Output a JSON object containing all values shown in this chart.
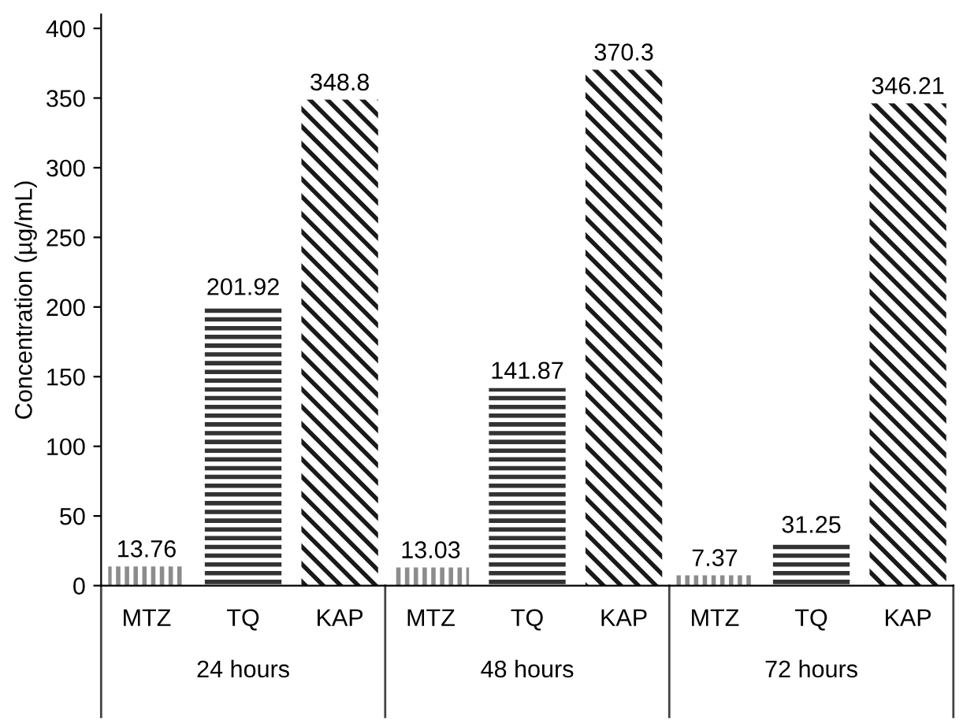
{
  "chart_data": {
    "type": "bar",
    "ylabel": "Concentration (µg/mL)",
    "categories": [
      "24 hours",
      "48 hours",
      "72 hours"
    ],
    "series": [
      {
        "name": "MTZ",
        "color": "#8c8c8c",
        "values": [
          13.76,
          13.03,
          7.37
        ]
      },
      {
        "name": "TQ",
        "color": "#333333",
        "values": [
          201.92,
          141.87,
          31.25
        ]
      },
      {
        "name": "KAP",
        "color": "#1a1a1a",
        "values": [
          348.8,
          370.3,
          346.21
        ]
      }
    ],
    "ylim": [
      0,
      410
    ],
    "yticks": [
      0,
      50,
      100,
      150,
      200,
      250,
      300,
      350,
      400
    ],
    "data_labels": true,
    "grid": false
  }
}
